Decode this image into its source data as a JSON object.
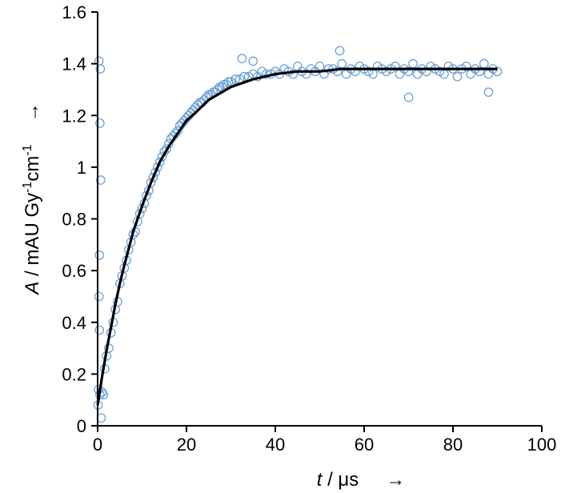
{
  "chart_data": {
    "type": "scatter",
    "title": "",
    "xlabel": {
      "var": "t",
      "unit": " / μs",
      "arrow": "→"
    },
    "ylabel": {
      "var": "A",
      "unit_a": " / mAU Gy",
      "sup1": "-1",
      "unit_b": "cm",
      "sup2": "-1",
      "arrow": "→"
    },
    "xlim": [
      0,
      100
    ],
    "ylim": [
      0,
      1.6
    ],
    "xticks": [
      0,
      20,
      40,
      60,
      80,
      100
    ],
    "yticks": [
      0,
      0.2,
      0.4,
      0.6,
      0.8,
      1,
      1.2,
      1.4,
      1.6
    ],
    "xtick_labels": [
      "0",
      "20",
      "40",
      "60",
      "80",
      "100"
    ],
    "ytick_labels": [
      "0",
      "0.2",
      "0.4",
      "0.6",
      "0.8",
      "1",
      "1.2",
      "1.4",
      "1.6"
    ],
    "grid": false,
    "legend": "none",
    "series": [
      {
        "kind": "scatter",
        "color": "#6aa2d6",
        "marker": "open-circle",
        "x": [
          0.1,
          0.2,
          0.3,
          0.4,
          0.5,
          0.7,
          1.0,
          1.3,
          1.6,
          2.0,
          2.5,
          3.0,
          3.5,
          4.0,
          4.5,
          5.0,
          5.5,
          6.0,
          6.5,
          7.0,
          7.5,
          8.0,
          8.5,
          9.0,
          9.5,
          10.0,
          10.5,
          11.0,
          11.5,
          12.0,
          12.5,
          13.0,
          13.5,
          14.0,
          14.5,
          15.0,
          15.5,
          16.0,
          16.5,
          17.0,
          17.5,
          18.0,
          18.5,
          19.0,
          19.5,
          20.0,
          20.5,
          21.0,
          21.5,
          22.0,
          22.5,
          23.0,
          23.5,
          24.0,
          24.5,
          25.0,
          25.5,
          26.0,
          26.5,
          27.0,
          27.5,
          28.0,
          28.5,
          29.0,
          29.5,
          30.0,
          31.0,
          32.0,
          33.0,
          34.0,
          35.0,
          36.0,
          37.0,
          38.0,
          39.0,
          40.0,
          41.0,
          42.0,
          43.0,
          44.0,
          45.0,
          46.0,
          47.0,
          48.0,
          49.0,
          50.0,
          51.0,
          52.0,
          53.0,
          54.0,
          55.0,
          56.0,
          57.0,
          58.0,
          59.0,
          60.0,
          61.0,
          62.0,
          63.0,
          64.0,
          65.0,
          66.0,
          67.0,
          68.0,
          69.0,
          70.0,
          71.0,
          72.0,
          73.0,
          74.0,
          75.0,
          76.0,
          77.0,
          78.0,
          79.0,
          80.0,
          81.0,
          82.0,
          83.0,
          84.0,
          85.0,
          86.0,
          87.0,
          88.0,
          89.0,
          90.0,
          0.3,
          0.5,
          0.6,
          0.8,
          0.4,
          32.5,
          70.0,
          54.5,
          35.0,
          88.0
        ],
        "y": [
          0.08,
          0.14,
          0.5,
          0.66,
          0.12,
          0.95,
          0.13,
          0.12,
          0.22,
          0.27,
          0.3,
          0.36,
          0.4,
          0.45,
          0.48,
          0.55,
          0.58,
          0.61,
          0.64,
          0.68,
          0.71,
          0.74,
          0.75,
          0.79,
          0.82,
          0.84,
          0.86,
          0.89,
          0.91,
          0.94,
          0.96,
          0.98,
          1.0,
          1.02,
          1.04,
          1.06,
          1.07,
          1.09,
          1.11,
          1.12,
          1.13,
          1.14,
          1.16,
          1.17,
          1.18,
          1.19,
          1.2,
          1.21,
          1.22,
          1.23,
          1.24,
          1.25,
          1.25,
          1.26,
          1.27,
          1.28,
          1.28,
          1.29,
          1.29,
          1.3,
          1.31,
          1.31,
          1.32,
          1.32,
          1.33,
          1.33,
          1.34,
          1.34,
          1.35,
          1.35,
          1.36,
          1.35,
          1.37,
          1.36,
          1.36,
          1.37,
          1.36,
          1.38,
          1.37,
          1.36,
          1.39,
          1.37,
          1.36,
          1.38,
          1.37,
          1.39,
          1.36,
          1.38,
          1.38,
          1.37,
          1.4,
          1.36,
          1.38,
          1.37,
          1.39,
          1.38,
          1.37,
          1.36,
          1.39,
          1.38,
          1.37,
          1.38,
          1.39,
          1.36,
          1.38,
          1.37,
          1.4,
          1.36,
          1.38,
          1.37,
          1.39,
          1.38,
          1.37,
          1.36,
          1.39,
          1.38,
          1.35,
          1.38,
          1.39,
          1.36,
          1.38,
          1.37,
          1.4,
          1.36,
          1.38,
          1.37,
          1.41,
          1.17,
          1.38,
          0.03,
          0.37,
          1.42,
          1.27,
          1.45,
          1.41,
          1.29
        ]
      },
      {
        "kind": "line",
        "color": "#000000",
        "x": [
          0,
          1,
          2,
          3,
          4,
          5,
          6,
          8,
          10,
          12,
          14,
          16,
          18,
          20,
          22,
          25,
          28,
          30,
          35,
          40,
          45,
          50,
          55,
          60,
          70,
          80,
          90
        ],
        "y": [
          0.08,
          0.19,
          0.29,
          0.38,
          0.47,
          0.55,
          0.62,
          0.75,
          0.85,
          0.94,
          1.02,
          1.08,
          1.13,
          1.18,
          1.21,
          1.26,
          1.29,
          1.31,
          1.34,
          1.36,
          1.37,
          1.37,
          1.38,
          1.38,
          1.38,
          1.38,
          1.38
        ]
      }
    ]
  }
}
